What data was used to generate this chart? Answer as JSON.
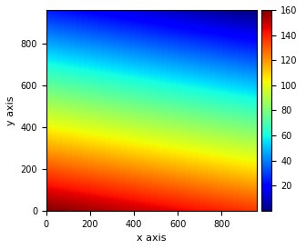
{
  "x_max": 960,
  "y_max": 960,
  "colormap": "jet",
  "vmin": 0,
  "vmax": 160,
  "xlabel": "x axis",
  "ylabel": "y axis",
  "colorbar_ticks": [
    20,
    40,
    60,
    80,
    100,
    120,
    140,
    160
  ],
  "xticks": [
    0,
    200,
    400,
    600,
    800
  ],
  "yticks": [
    0,
    200,
    400,
    600,
    800
  ],
  "figsize": [
    3.36,
    2.74
  ],
  "dpi": 100,
  "z_y_weight": 0.85,
  "z_x_weight": 0.15
}
